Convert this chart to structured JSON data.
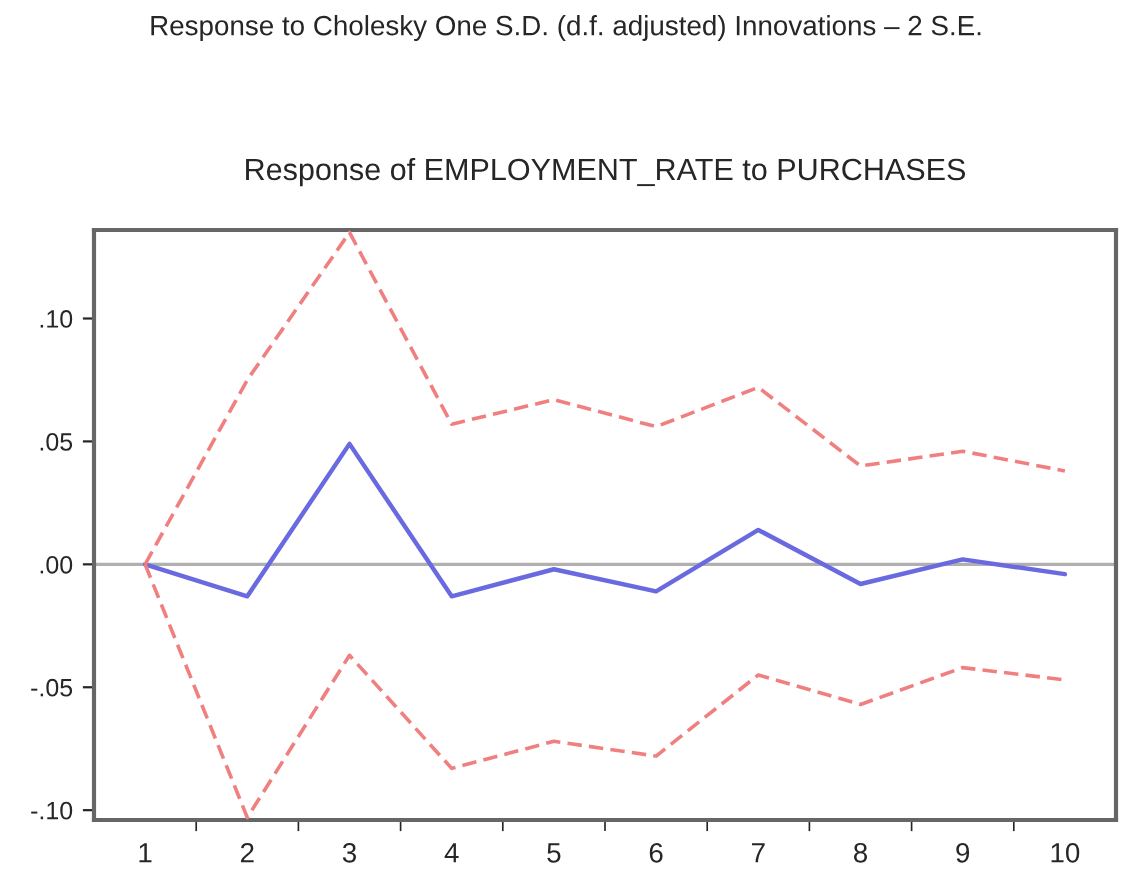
{
  "chart_data": {
    "type": "line",
    "title": "Response to Cholesky One S.D. (d.f. adjusted) Innovations – 2 S.E.",
    "subtitle": "Response of EMPLOYMENT_RATE to PURCHASES",
    "categories": [
      "1",
      "2",
      "3",
      "4",
      "5",
      "6",
      "7",
      "8",
      "9",
      "10"
    ],
    "series": [
      {
        "color": "#6a6ae0",
        "line_style": "solid",
        "values": [
          0,
          -0.013,
          0.049,
          -0.013,
          -0.002,
          -0.011,
          0.014,
          -0.008,
          0.002,
          -0.004
        ]
      },
      {
        "color": "#f08080",
        "line_style": "dashed",
        "values": [
          0,
          0.075,
          0.135,
          0.057,
          0.067,
          0.056,
          0.072,
          0.04,
          0.046,
          0.038
        ]
      },
      {
        "color": "#f08080",
        "line_style": "dashed",
        "values": [
          0,
          -0.103,
          -0.037,
          -0.083,
          -0.072,
          -0.078,
          -0.045,
          -0.057,
          -0.042,
          -0.047
        ]
      }
    ],
    "ylim": [
      -0.104,
      0.136
    ],
    "yticks": [
      {
        "value": -0.1,
        "label": "-.10"
      },
      {
        "value": -0.05,
        "label": "-.05"
      },
      {
        "value": 0,
        "label": ".00"
      },
      {
        "value": 0.05,
        "label": ".05"
      },
      {
        "value": 0.1,
        "label": ".10"
      }
    ],
    "ref_lines": [
      {
        "axis": "y",
        "value": 0,
        "color": "#b0b0b0",
        "line_style": "solid"
      }
    ],
    "grid": false,
    "legend": false,
    "marker": "none"
  }
}
